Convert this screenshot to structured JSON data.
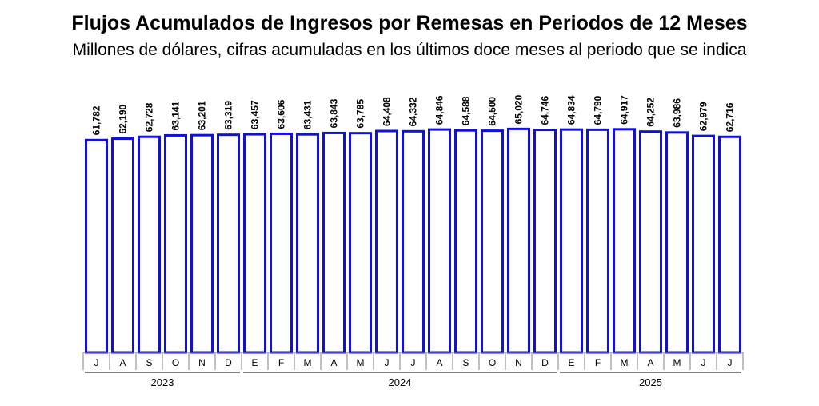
{
  "chart_data": {
    "type": "bar",
    "title": "Flujos Acumulados de Ingresos por Remesas en Periodos de 12 Meses",
    "subtitle": "Millones de dólares, cifras acumuladas en los últimos doce meses al periodo que se indica",
    "categories": [
      "J",
      "A",
      "S",
      "O",
      "N",
      "D",
      "E",
      "F",
      "M",
      "A",
      "M",
      "J",
      "J",
      "A",
      "S",
      "O",
      "N",
      "D",
      "E",
      "F",
      "M",
      "A",
      "M",
      "J",
      "J"
    ],
    "values": [
      61782,
      62190,
      62728,
      63141,
      63201,
      63319,
      63457,
      63606,
      63431,
      63843,
      63785,
      64408,
      64332,
      64846,
      64588,
      64500,
      65020,
      64746,
      64834,
      64790,
      64917,
      64252,
      63986,
      62979,
      62716
    ],
    "value_labels": [
      "61,782",
      "62,190",
      "62,728",
      "63,141",
      "63,201",
      "63,319",
      "63,457",
      "63,606",
      "63,431",
      "63,843",
      "63,785",
      "64,408",
      "64,332",
      "64,846",
      "64,588",
      "64,500",
      "65,020",
      "64,746",
      "64,834",
      "64,790",
      "64,917",
      "64,252",
      "63,986",
      "62,979",
      "62,716"
    ],
    "year_groups": [
      {
        "label": "2023",
        "start": 0,
        "end": 5
      },
      {
        "label": "2024",
        "start": 6,
        "end": 17
      },
      {
        "label": "2025",
        "start": 18,
        "end": 24
      }
    ],
    "ylim": [
      0,
      66500
    ],
    "grid": false,
    "bar_fill": "#ffffff",
    "bar_stroke": "#1010d8"
  }
}
